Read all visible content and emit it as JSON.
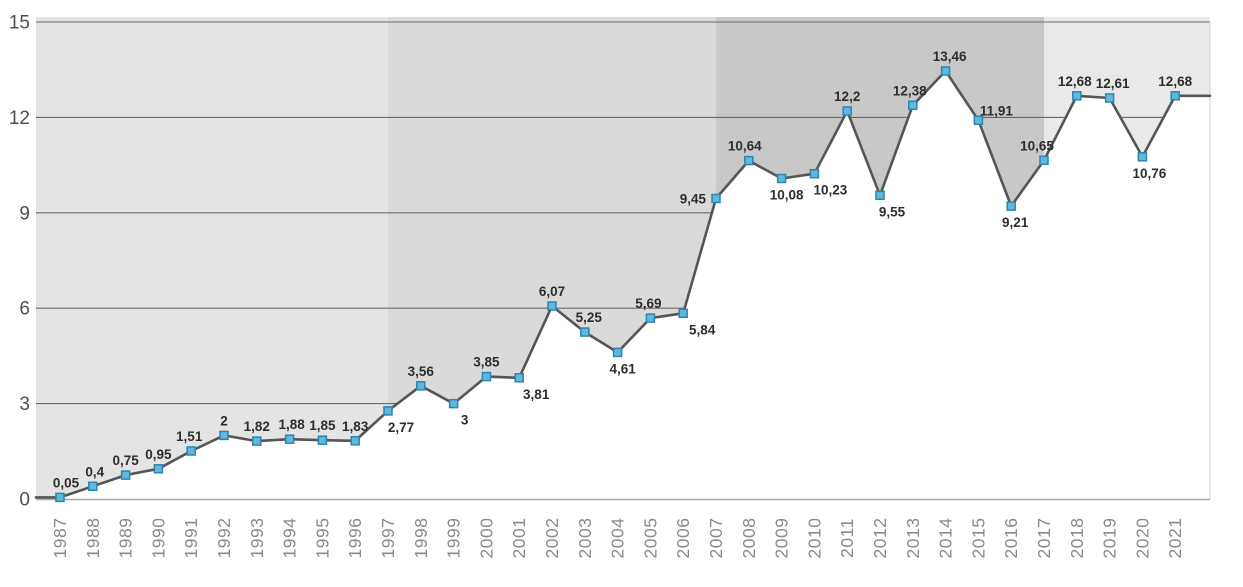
{
  "chart_data": {
    "type": "line",
    "title": "",
    "xlabel": "",
    "ylabel": "",
    "ylim": [
      0,
      15
    ],
    "y_ticks": [
      0,
      3,
      6,
      9,
      12,
      15
    ],
    "grid": true,
    "legend": "none",
    "decimal_style": "comma",
    "years": [
      1987,
      1988,
      1989,
      1990,
      1991,
      1992,
      1993,
      1994,
      1995,
      1996,
      1997,
      1998,
      1999,
      2000,
      2001,
      2002,
      2003,
      2004,
      2005,
      2006,
      2007,
      2008,
      2009,
      2010,
      2011,
      2012,
      2013,
      2014,
      2015,
      2016,
      2017,
      2018,
      2019,
      2020,
      2021
    ],
    "values": [
      0.05,
      0.4,
      0.75,
      0.95,
      1.51,
      2,
      1.82,
      1.88,
      1.85,
      1.83,
      2.77,
      3.56,
      3,
      3.85,
      3.81,
      6.07,
      5.25,
      4.61,
      5.69,
      5.84,
      9.45,
      10.64,
      10.08,
      10.23,
      12.2,
      9.55,
      12.38,
      13.46,
      11.91,
      9.21,
      10.65,
      12.68,
      12.61,
      10.76,
      12.68
    ],
    "point_labels": [
      {
        "text": "0,05",
        "pos": "a",
        "dx": 6
      },
      {
        "text": "0,4",
        "pos": "a",
        "dx": 2
      },
      {
        "text": "0,75",
        "pos": "a",
        "dx": 0
      },
      {
        "text": "0,95",
        "pos": "a",
        "dx": 0
      },
      {
        "text": "1,51",
        "pos": "a",
        "dx": -2
      },
      {
        "text": "2",
        "pos": "a",
        "dx": 0
      },
      {
        "text": "1,82",
        "pos": "a",
        "dx": 0
      },
      {
        "text": "1,88",
        "pos": "a",
        "dx": 2
      },
      {
        "text": "1,85",
        "pos": "a",
        "dx": 0
      },
      {
        "text": "1,83",
        "pos": "a",
        "dx": 0
      },
      {
        "text": "2,77",
        "pos": "b",
        "dx": 13
      },
      {
        "text": "3,56",
        "pos": "a",
        "dx": 0
      },
      {
        "text": "3",
        "pos": "b",
        "dx": 11
      },
      {
        "text": "3,85",
        "pos": "a",
        "dx": 0
      },
      {
        "text": "3,81",
        "pos": "b",
        "dx": 17
      },
      {
        "text": "6,07",
        "pos": "a",
        "dx": 0
      },
      {
        "text": "5,25",
        "pos": "a",
        "dx": 4
      },
      {
        "text": "4,61",
        "pos": "b",
        "dx": 5
      },
      {
        "text": "5,69",
        "pos": "a",
        "dx": -2
      },
      {
        "text": "5,84",
        "pos": "b",
        "dx": 19
      },
      {
        "text": "9,45",
        "pos": "l",
        "dx": 0
      },
      {
        "text": "10,64",
        "pos": "a",
        "dx": -4
      },
      {
        "text": "10,08",
        "pos": "b",
        "dx": 5
      },
      {
        "text": "10,23",
        "pos": "b",
        "dx": 16
      },
      {
        "text": "12,2",
        "pos": "a",
        "dx": 0
      },
      {
        "text": "9,55",
        "pos": "b",
        "dx": 12
      },
      {
        "text": "12,38",
        "pos": "a",
        "dx": -3
      },
      {
        "text": "13,46",
        "pos": "a",
        "dx": 4
      },
      {
        "text": "11,91",
        "pos": "a",
        "dx": 18,
        "dy": 5
      },
      {
        "text": "9,21",
        "pos": "b",
        "dx": 4
      },
      {
        "text": "10,65",
        "pos": "a",
        "dx": -7
      },
      {
        "text": "12,68",
        "pos": "a",
        "dx": -2
      },
      {
        "text": "12,61",
        "pos": "a",
        "dx": 3
      },
      {
        "text": "10,76",
        "pos": "b",
        "dx": 7
      },
      {
        "text": "12,68",
        "pos": "a",
        "dx": 0
      }
    ],
    "eras": [
      {
        "from": 1987,
        "to": 1997,
        "color": "#e4e4e4"
      },
      {
        "from": 1997,
        "to": 2007,
        "color": "#dadada"
      },
      {
        "from": 2007,
        "to": 2017,
        "color": "#c8c8c8"
      },
      {
        "from": 2017,
        "to": 2021,
        "color": "#e9e9e9"
      }
    ],
    "colors": {
      "line": "#545559",
      "marker_fill": "#5dbade",
      "marker_stroke": "#2d84ae",
      "grid": "#6a6a6a",
      "axis": "#a8a8a8",
      "plot_border": "#d8d8d8",
      "point_label": "#2d2d2d",
      "x_tick": "#8a8a8a",
      "y_tick": "#4f4f4f",
      "background": "#ffffff",
      "below_line": "#ffffff"
    }
  }
}
